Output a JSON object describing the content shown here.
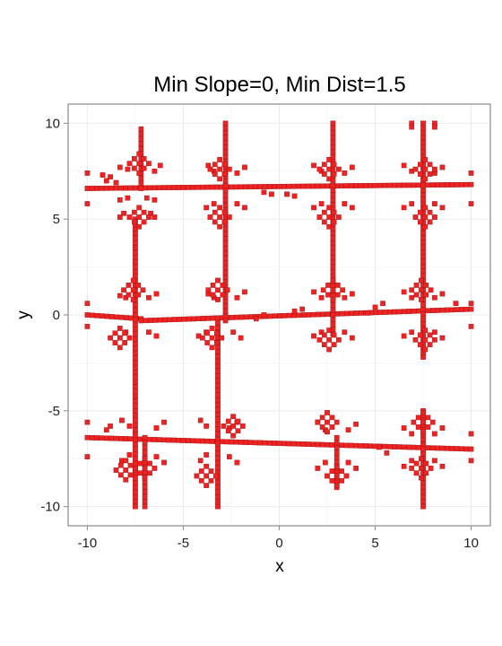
{
  "chart_data": {
    "type": "scatter",
    "title": "Min Slope=0, Min Dist=1.5",
    "xlabel": "x",
    "ylabel": "y",
    "xlim": [
      -11,
      11
    ],
    "ylim": [
      -11,
      11
    ],
    "x_ticks": [
      -10,
      -5,
      0,
      5,
      10
    ],
    "y_ticks": [
      -10,
      -5,
      0,
      5,
      10
    ],
    "x_tick_labels": [
      "-10",
      "-5",
      "0",
      "5",
      "10"
    ],
    "y_tick_labels": [
      "-10",
      "-5",
      "0",
      "5",
      "10"
    ],
    "grid": true,
    "point_color": "#ee2222",
    "cell_size": 0.25,
    "series": [
      {
        "segments": [
          [
            -10,
            6.6,
            10,
            6.8
          ],
          [
            -10,
            0,
            -7.2,
            -0.2
          ],
          [
            -7.2,
            -0.3,
            10,
            0.3
          ],
          [
            -10,
            -6.4,
            10,
            -7.0
          ],
          [
            -7.5,
            5.0,
            -7.5,
            -10
          ],
          [
            -3.2,
            -0.4,
            -3.2,
            -10
          ],
          [
            -2.8,
            10,
            -2.8,
            -0.3
          ],
          [
            2.8,
            10,
            2.8,
            -1.0
          ],
          [
            3.0,
            -6.4,
            3.0,
            -9.0
          ],
          [
            7.5,
            10,
            7.5,
            -2.2
          ],
          [
            7.5,
            -5.0,
            7.5,
            -10
          ],
          [
            -7.2,
            9.7,
            -7.2,
            6.6
          ],
          [
            -7.0,
            -6.4,
            -7.0,
            -10
          ]
        ],
        "points": [
          [
            -10,
            7.4
          ],
          [
            -10,
            5.8
          ],
          [
            -10,
            0.6
          ],
          [
            -10,
            -0.6
          ],
          [
            -10,
            -5.6
          ],
          [
            -10,
            -7.4
          ],
          [
            10,
            7.4
          ],
          [
            10,
            5.8
          ],
          [
            10,
            0.6
          ],
          [
            10,
            -0.6
          ],
          [
            10,
            -6.2
          ],
          [
            10,
            -7.6
          ],
          [
            6.9,
            10.0
          ],
          [
            8.1,
            10.0
          ],
          [
            6.9,
            9.8
          ],
          [
            8.1,
            9.8
          ],
          [
            -6.9,
            6.1
          ],
          [
            -6.5,
            6.0
          ],
          [
            -7.9,
            6.1
          ],
          [
            -8.3,
            6.0
          ],
          [
            -6.7,
            5.3
          ],
          [
            -6.5,
            5.1
          ],
          [
            -8.1,
            5.3
          ],
          [
            -8.3,
            5.1
          ],
          [
            -6.5,
            7.5
          ],
          [
            -6.2,
            7.8
          ],
          [
            -7.9,
            7.6
          ],
          [
            -8.3,
            7.7
          ],
          [
            -2.2,
            7.4
          ],
          [
            -1.8,
            7.7
          ],
          [
            -3.4,
            7.5
          ],
          [
            -3.7,
            7.8
          ],
          [
            -2.2,
            5.8
          ],
          [
            -1.8,
            5.6
          ],
          [
            -3.4,
            5.8
          ],
          [
            -3.8,
            5.6
          ],
          [
            3.4,
            7.4
          ],
          [
            3.8,
            7.7
          ],
          [
            2.2,
            7.5
          ],
          [
            1.8,
            7.8
          ],
          [
            3.4,
            5.8
          ],
          [
            3.8,
            5.6
          ],
          [
            2.2,
            5.8
          ],
          [
            1.8,
            5.6
          ],
          [
            8.1,
            7.4
          ],
          [
            8.5,
            7.7
          ],
          [
            6.9,
            7.5
          ],
          [
            6.5,
            7.8
          ],
          [
            8.1,
            5.8
          ],
          [
            8.5,
            5.6
          ],
          [
            6.9,
            5.8
          ],
          [
            6.5,
            5.6
          ],
          [
            -9.0,
            7.0
          ],
          [
            -8.8,
            7.2
          ],
          [
            -9.2,
            7.3
          ],
          [
            -8.5,
            6.9
          ],
          [
            0.4,
            6.3
          ],
          [
            0.8,
            6.2
          ],
          [
            -0.4,
            6.3
          ],
          [
            -0.8,
            6.4
          ],
          [
            -6.8,
            0.9
          ],
          [
            -6.4,
            1.1
          ],
          [
            -8.0,
            0.9
          ],
          [
            -8.3,
            1.0
          ],
          [
            -6.8,
            -0.9
          ],
          [
            -6.4,
            -1.1
          ],
          [
            -8.0,
            -0.9
          ],
          [
            -8.3,
            -1.2
          ],
          [
            -2.2,
            0.9
          ],
          [
            -1.8,
            1.2
          ],
          [
            -3.4,
            0.9
          ],
          [
            -3.7,
            1.1
          ],
          [
            -2.4,
            -0.9
          ],
          [
            -2.0,
            -1.2
          ],
          [
            -3.8,
            -0.9
          ],
          [
            -4.2,
            -1.1
          ],
          [
            3.4,
            0.9
          ],
          [
            3.8,
            1.1
          ],
          [
            2.2,
            0.9
          ],
          [
            1.8,
            1.2
          ],
          [
            3.4,
            -0.9
          ],
          [
            3.8,
            -1.2
          ],
          [
            2.2,
            -0.9
          ],
          [
            1.8,
            -1.1
          ],
          [
            8.1,
            0.9
          ],
          [
            8.5,
            1.1
          ],
          [
            6.9,
            0.9
          ],
          [
            6.5,
            1.2
          ],
          [
            8.1,
            -0.9
          ],
          [
            8.5,
            -1.2
          ],
          [
            6.9,
            -0.9
          ],
          [
            6.5,
            -1.1
          ],
          [
            -0.8,
            0.0
          ],
          [
            0.8,
            0.2
          ],
          [
            -1.2,
            -0.2
          ],
          [
            1.2,
            0.3
          ],
          [
            5.0,
            0.4
          ],
          [
            5.4,
            0.6
          ],
          [
            4.6,
            0.1
          ],
          [
            9.2,
            0.6
          ],
          [
            -6.4,
            -5.9
          ],
          [
            -6.0,
            -5.6
          ],
          [
            -7.8,
            -5.8
          ],
          [
            -8.2,
            -5.5
          ],
          [
            -6.4,
            -7.4
          ],
          [
            -6.0,
            -7.7
          ],
          [
            -7.8,
            -7.3
          ],
          [
            -8.2,
            -7.6
          ],
          [
            -2.6,
            -5.9
          ],
          [
            -2.2,
            -5.6
          ],
          [
            -3.8,
            -5.8
          ],
          [
            -4.1,
            -5.5
          ],
          [
            -2.6,
            -7.4
          ],
          [
            -2.2,
            -7.7
          ],
          [
            -3.8,
            -7.3
          ],
          [
            -4.1,
            -7.6
          ],
          [
            3.6,
            -6.0
          ],
          [
            4.0,
            -5.7
          ],
          [
            2.4,
            -6.0
          ],
          [
            2.0,
            -5.6
          ],
          [
            3.6,
            -7.7
          ],
          [
            4.0,
            -8.0
          ],
          [
            2.4,
            -7.7
          ],
          [
            2.0,
            -8.0
          ],
          [
            8.1,
            -6.2
          ],
          [
            8.5,
            -5.9
          ],
          [
            6.9,
            -6.2
          ],
          [
            6.5,
            -5.9
          ],
          [
            8.1,
            -7.6
          ],
          [
            8.5,
            -7.9
          ],
          [
            6.9,
            -7.6
          ],
          [
            6.5,
            -7.9
          ],
          [
            -9.0,
            -6.0
          ],
          [
            -8.8,
            -5.8
          ],
          [
            5.2,
            -6.9
          ],
          [
            5.6,
            -7.2
          ]
        ],
        "clusters": [
          [
            -7.3,
            7.9
          ],
          [
            -7.3,
            5.1
          ],
          [
            -3.1,
            7.6
          ],
          [
            -3.1,
            5.1
          ],
          [
            2.6,
            7.6
          ],
          [
            2.6,
            5.1
          ],
          [
            7.6,
            7.6
          ],
          [
            7.6,
            5.1
          ],
          [
            -7.6,
            1.3
          ],
          [
            -8.3,
            -1.2
          ],
          [
            -3.2,
            1.3
          ],
          [
            -3.5,
            -1.2
          ],
          [
            2.8,
            1.3
          ],
          [
            2.6,
            -1.3
          ],
          [
            7.4,
            1.3
          ],
          [
            7.6,
            -1.3
          ],
          [
            -8.0,
            -8.1
          ],
          [
            -7.0,
            -8.0
          ],
          [
            -3.8,
            -8.4
          ],
          [
            -2.4,
            -5.8
          ],
          [
            2.5,
            -5.6
          ],
          [
            3.0,
            -8.4
          ],
          [
            7.5,
            -5.6
          ],
          [
            7.4,
            -8.0
          ]
        ]
      }
    ]
  }
}
